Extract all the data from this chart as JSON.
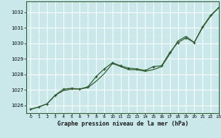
{
  "title": "Graphe pression niveau de la mer (hPa)",
  "bg_color": "#cae8ea",
  "grid_color": "#ffffff",
  "line_color": "#2d5a2d",
  "xlim": [
    -0.5,
    23
  ],
  "ylim": [
    1025.5,
    1032.7
  ],
  "yticks": [
    1026,
    1027,
    1028,
    1029,
    1030,
    1031,
    1032
  ],
  "xticks": [
    0,
    1,
    2,
    3,
    4,
    5,
    6,
    7,
    8,
    9,
    10,
    11,
    12,
    13,
    14,
    15,
    16,
    17,
    18,
    19,
    20,
    21,
    22,
    23
  ],
  "line1_x": [
    0,
    1,
    2,
    3,
    4,
    5,
    6,
    7,
    8,
    9,
    10,
    11,
    12,
    13,
    14,
    15,
    16,
    17,
    18,
    19,
    20,
    21,
    22,
    23
  ],
  "line1_y": [
    1025.75,
    1025.9,
    1026.1,
    1026.65,
    1026.95,
    1027.05,
    1027.05,
    1027.15,
    1027.55,
    1028.05,
    1028.7,
    1028.5,
    1028.3,
    1028.3,
    1028.2,
    1028.3,
    1028.5,
    1029.3,
    1030.15,
    1030.45,
    1030.05,
    1031.0,
    1031.75,
    1032.3
  ],
  "line2_x": [
    0,
    1,
    2,
    3,
    4,
    5,
    6,
    7,
    8,
    9,
    10,
    11,
    12,
    13,
    14,
    15,
    16,
    17,
    18,
    19,
    20,
    21,
    22,
    23
  ],
  "line2_y": [
    1025.75,
    1025.9,
    1026.1,
    1026.65,
    1027.05,
    1027.1,
    1027.05,
    1027.2,
    1027.85,
    1028.35,
    1028.75,
    1028.55,
    1028.4,
    1028.35,
    1028.25,
    1028.5,
    1028.55,
    1029.4,
    1030.05,
    1030.35,
    1030.05,
    1031.05,
    1031.8,
    1032.3
  ]
}
